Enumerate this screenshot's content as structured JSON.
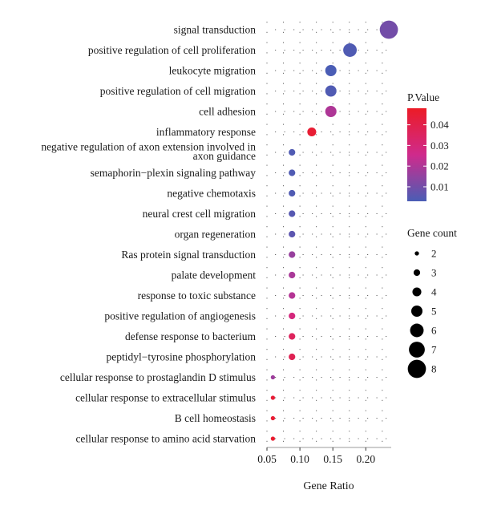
{
  "chart_data": {
    "type": "scatter",
    "xlabel": "Gene Ratio",
    "xlim": [
      0.05,
      0.24
    ],
    "xticks": [
      0.05,
      0.1,
      0.15,
      0.2
    ],
    "xtick_labels": [
      "0.05",
      "0.10",
      "0.15",
      "0.20"
    ],
    "grid": "dotted",
    "categories": [
      "signal transduction",
      "positive regulation of cell proliferation",
      "leukocyte migration",
      "positive regulation of cell migration",
      "cell adhesion",
      "inflammatory response",
      "negative regulation of axon extension involved in axon guidance",
      "semaphorin−plexin signaling pathway",
      "negative chemotaxis",
      "neural crest cell migration",
      "organ regeneration",
      "Ras protein signal transduction",
      "palate development",
      "response to toxic substance",
      "positive regulation of angiogenesis",
      "defense response to bacterium",
      "peptidyl−tyrosine phosphorylation",
      "cellular response to prostaglandin D stimulus",
      "cellular response to extracellular stimulus",
      "B cell homeostasis",
      "cellular response to amino acid starvation"
    ],
    "category_lines": [
      [
        "signal transduction"
      ],
      [
        "positive regulation of cell proliferation"
      ],
      [
        "leukocyte migration"
      ],
      [
        "positive regulation of cell migration"
      ],
      [
        "cell adhesion"
      ],
      [
        "inflammatory response"
      ],
      [
        "negative regulation of axon extension involved in",
        "axon guidance"
      ],
      [
        "semaphorin−plexin signaling pathway"
      ],
      [
        "negative chemotaxis"
      ],
      [
        "neural crest cell migration"
      ],
      [
        "organ regeneration"
      ],
      [
        "Ras protein signal transduction"
      ],
      [
        "palate development"
      ],
      [
        "response to toxic substance"
      ],
      [
        "positive regulation of angiogenesis"
      ],
      [
        "defense response to bacterium"
      ],
      [
        "peptidyl−tyrosine phosphorylation"
      ],
      [
        "cellular response to prostaglandin D stimulus"
      ],
      [
        "cellular response to extracellular stimulus"
      ],
      [
        "B cell homeostasis"
      ],
      [
        "cellular response to amino acid starvation"
      ]
    ],
    "points": [
      {
        "gene_ratio": 0.235,
        "count": 8,
        "p_value": 0.01
      },
      {
        "gene_ratio": 0.176,
        "count": 6,
        "p_value": 0.004
      },
      {
        "gene_ratio": 0.147,
        "count": 5,
        "p_value": 0.003
      },
      {
        "gene_ratio": 0.147,
        "count": 5,
        "p_value": 0.004
      },
      {
        "gene_ratio": 0.147,
        "count": 5,
        "p_value": 0.02
      },
      {
        "gene_ratio": 0.118,
        "count": 4,
        "p_value": 0.045
      },
      {
        "gene_ratio": 0.088,
        "count": 3,
        "p_value": 0.004
      },
      {
        "gene_ratio": 0.088,
        "count": 3,
        "p_value": 0.004
      },
      {
        "gene_ratio": 0.088,
        "count": 3,
        "p_value": 0.004
      },
      {
        "gene_ratio": 0.088,
        "count": 3,
        "p_value": 0.005
      },
      {
        "gene_ratio": 0.088,
        "count": 3,
        "p_value": 0.006
      },
      {
        "gene_ratio": 0.088,
        "count": 3,
        "p_value": 0.016
      },
      {
        "gene_ratio": 0.088,
        "count": 3,
        "p_value": 0.019
      },
      {
        "gene_ratio": 0.088,
        "count": 3,
        "p_value": 0.021
      },
      {
        "gene_ratio": 0.088,
        "count": 3,
        "p_value": 0.029
      },
      {
        "gene_ratio": 0.088,
        "count": 3,
        "p_value": 0.036
      },
      {
        "gene_ratio": 0.088,
        "count": 3,
        "p_value": 0.038
      },
      {
        "gene_ratio": 0.059,
        "count": 2,
        "p_value": 0.017
      },
      {
        "gene_ratio": 0.059,
        "count": 2,
        "p_value": 0.044
      },
      {
        "gene_ratio": 0.059,
        "count": 2,
        "p_value": 0.045
      },
      {
        "gene_ratio": 0.059,
        "count": 2,
        "p_value": 0.046
      }
    ],
    "color_legend": {
      "title": "P.Value",
      "min": 0.003,
      "max": 0.048,
      "ticks": [
        0.01,
        0.02,
        0.03,
        0.04
      ],
      "tick_labels": [
        "0.01",
        "0.02",
        "0.03",
        "0.04"
      ],
      "low_color": "#4a5db5",
      "mid_color": "#cf2a8c",
      "high_color": "#ec1b26"
    },
    "size_legend": {
      "title": "Gene count",
      "values": [
        2,
        3,
        4,
        5,
        6,
        7,
        8
      ],
      "labels": [
        "2",
        "3",
        "4",
        "5",
        "6",
        "7",
        "8"
      ]
    }
  }
}
